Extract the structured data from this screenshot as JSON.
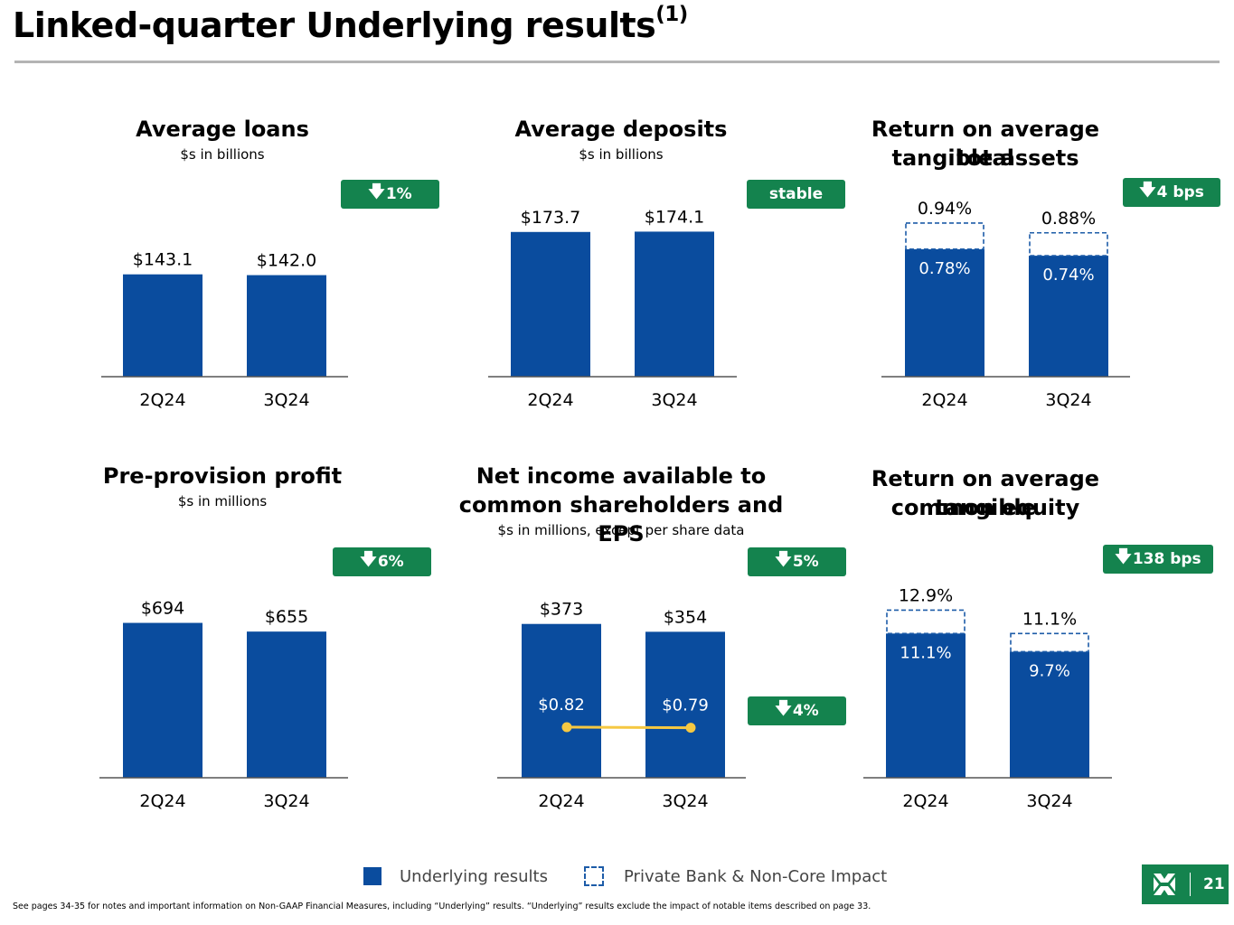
{
  "page": {
    "title": "Linked-quarter Underlying results",
    "title_sup": "(1)",
    "page_number": "21",
    "footnote": "See pages 34-35 for notes and important information on Non-GAAP Financial Measures, including “Underlying” results. “Underlying” results exclude the impact of notable items described on page 33.",
    "logo_icon": "citizens-logo-icon"
  },
  "legend": {
    "underlying": "Underlying results",
    "private_bank": "Private Bank & Non-Core Impact"
  },
  "colors": {
    "bar": "#0a4c9e",
    "dashed": "#1d5ca8",
    "pill": "#14834e",
    "eps_line": "#f5c842",
    "axis": "#555555"
  },
  "panels": {
    "loans": {
      "title": "Average loans",
      "subtitle": "$s in billions",
      "change": "1%",
      "change_arrow": "down-arrow-icon"
    },
    "deposits": {
      "title": "Average deposits",
      "subtitle": "$s in billions",
      "change": "stable"
    },
    "rotta": {
      "title_line1": "Return on average total",
      "title_line2": "tangible assets",
      "change": "4 bps",
      "change_arrow": "down-arrow-icon"
    },
    "ppp": {
      "title": "Pre-provision profit",
      "subtitle": "$s in millions",
      "change": "6%",
      "change_arrow": "down-arrow-icon"
    },
    "ni": {
      "title_line1": "Net income available to",
      "title_line2": "common shareholders and EPS",
      "subtitle": "$s in millions, except per share data",
      "change": "5%",
      "change_eps": "4%",
      "change_arrow": "down-arrow-icon"
    },
    "rotce": {
      "title_line1": "Return on average tangible",
      "title_line2": "common equity",
      "change": "138 bps",
      "change_arrow": "down-arrow-icon"
    }
  },
  "chart_data": [
    {
      "id": "loans",
      "type": "bar",
      "categories": [
        "2Q24",
        "3Q24"
      ],
      "series": [
        {
          "name": "Underlying results",
          "values": [
            143.1,
            142.0
          ]
        }
      ],
      "labels": [
        "$143.1",
        "$142.0"
      ],
      "ylim": [
        0,
        240
      ]
    },
    {
      "id": "deposits",
      "type": "bar",
      "categories": [
        "2Q24",
        "3Q24"
      ],
      "series": [
        {
          "name": "Underlying results",
          "values": [
            173.7,
            174.1
          ]
        }
      ],
      "labels": [
        "$173.7",
        "$174.1"
      ],
      "ylim": [
        0,
        206
      ]
    },
    {
      "id": "rotta",
      "type": "bar",
      "categories": [
        "2Q24",
        "3Q24"
      ],
      "series": [
        {
          "name": "Underlying results",
          "values": [
            0.78,
            0.74
          ],
          "labels": [
            "0.78%",
            "0.74%"
          ]
        },
        {
          "name": "Private Bank & Non-Core Impact",
          "values": [
            0.16,
            0.14
          ]
        }
      ],
      "totals": [
        0.94,
        0.88
      ],
      "total_labels": [
        "0.94%",
        "0.88%"
      ],
      "ylim": [
        0,
        1.05
      ]
    },
    {
      "id": "ppp",
      "type": "bar",
      "categories": [
        "2Q24",
        "3Q24"
      ],
      "series": [
        {
          "name": "Underlying results",
          "values": [
            694,
            655
          ]
        }
      ],
      "labels": [
        "$694",
        "$655"
      ],
      "ylim": [
        0,
        850
      ]
    },
    {
      "id": "ni",
      "type": "bar",
      "categories": [
        "2Q24",
        "3Q24"
      ],
      "series": [
        {
          "name": "Net income",
          "values": [
            373,
            354
          ],
          "labels": [
            "$373",
            "$354"
          ]
        },
        {
          "name": "EPS",
          "type": "line",
          "values": [
            0.82,
            0.79
          ],
          "labels": [
            "$0.82",
            "$0.79"
          ]
        }
      ],
      "ylim": [
        0,
        460
      ]
    },
    {
      "id": "rotce",
      "type": "bar",
      "categories": [
        "2Q24",
        "3Q24"
      ],
      "series": [
        {
          "name": "Underlying results",
          "values": [
            11.1,
            9.7
          ],
          "labels": [
            "11.1%",
            "9.7%"
          ]
        },
        {
          "name": "Private Bank & Non-Core Impact",
          "values": [
            1.8,
            1.4
          ]
        }
      ],
      "totals": [
        12.9,
        11.1
      ],
      "total_labels": [
        "12.9%",
        "11.1%"
      ],
      "ylim": [
        0,
        14.6
      ]
    }
  ]
}
